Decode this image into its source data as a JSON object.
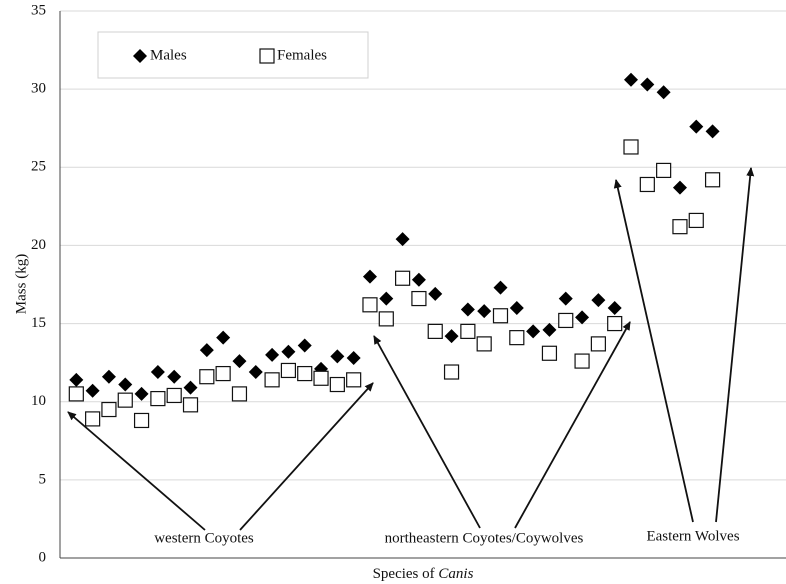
{
  "chart_data": {
    "type": "scatter",
    "y_label": "Mass (kg)",
    "x_label": [
      "Species of",
      "Canis"
    ],
    "group_labels": [
      "western Coyotes",
      "northeastern Coyotes/Coywolves",
      "Eastern Wolves"
    ],
    "x": [
      1,
      2,
      3,
      4,
      5,
      6,
      7,
      8,
      9,
      10,
      11,
      12,
      13,
      14,
      15,
      16,
      17,
      18,
      19,
      20,
      21,
      22,
      23,
      24,
      25,
      26,
      27,
      28,
      29,
      30,
      31,
      32,
      33,
      34,
      35,
      36,
      37,
      38,
      39,
      40
    ],
    "series": [
      {
        "name": "Males",
        "marker": "diamond",
        "color": "#000000",
        "values": [
          11.4,
          10.7,
          11.6,
          11.1,
          10.5,
          11.9,
          11.6,
          10.9,
          13.3,
          14.1,
          12.6,
          11.9,
          13.0,
          13.2,
          13.6,
          12.1,
          12.9,
          12.8,
          18.0,
          16.6,
          20.4,
          17.8,
          16.9,
          14.2,
          15.9,
          15.8,
          17.3,
          16.0,
          14.5,
          14.6,
          16.6,
          15.4,
          16.5,
          16.0,
          30.6,
          30.3,
          29.8,
          23.7,
          27.6,
          27.3
        ]
      },
      {
        "name": "Females",
        "marker": "square",
        "color": "#ffffff",
        "values": [
          10.5,
          8.9,
          9.5,
          10.1,
          8.8,
          10.2,
          10.4,
          9.8,
          11.6,
          11.8,
          10.5,
          null,
          11.4,
          12.0,
          11.8,
          11.5,
          11.1,
          11.4,
          16.2,
          15.3,
          17.9,
          16.6,
          14.5,
          11.9,
          14.5,
          13.7,
          15.5,
          14.1,
          null,
          13.1,
          15.2,
          12.6,
          13.7,
          15.0,
          26.3,
          23.9,
          24.8,
          21.2,
          21.6,
          24.2
        ]
      }
    ],
    "xlim": [
      0,
      44.5
    ],
    "ylim": [
      0,
      35
    ],
    "yticks": [
      0,
      5,
      10,
      15,
      20,
      25,
      30,
      35
    ],
    "grid": true
  }
}
